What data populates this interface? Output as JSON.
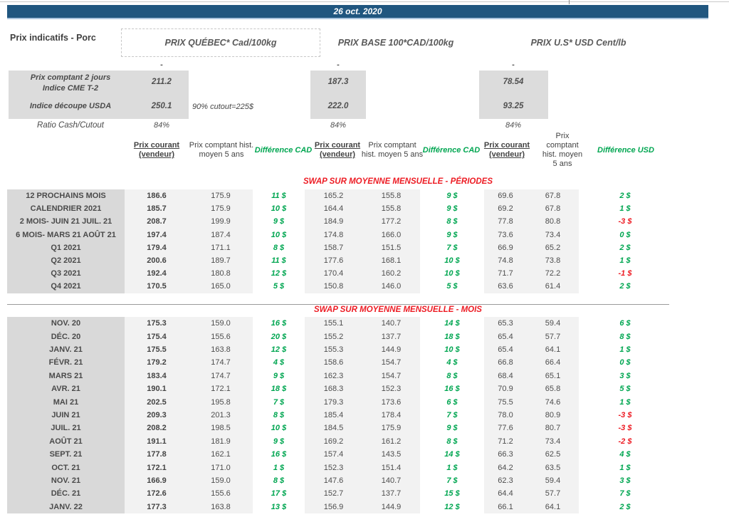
{
  "banner": {
    "date": "26 oct. 2020"
  },
  "page_title": "Prix indicatifs - Porc",
  "price_headers": {
    "quebec": "PRIX QUÉBEC* Cad/100kg",
    "base": "PRIX BASE 100*CAD/100kg",
    "us": "PRIX U.S* USD Cent/lb"
  },
  "summary": {
    "dash": "-",
    "row1": {
      "label_line1": "Prix comptant 2 jours",
      "label_line2": "Indice CME T-2",
      "quebec": "211.2",
      "base": "187.3",
      "us": "78.54"
    },
    "row2": {
      "label": "Indice découpe USDA",
      "quebec": "250.1",
      "note": "90% cutout=225$",
      "base": "222.0",
      "us": "93.25"
    },
    "row3": {
      "label": "Ratio Cash/Cutout",
      "quebec": "84%",
      "base": "84%",
      "us": "84%"
    }
  },
  "columns": {
    "prix_courant": "Prix courant (vendeur)",
    "prix_comptant": "Prix comptant hist. moyen 5 ans",
    "diff_cad": "Différence CAD",
    "diff_usd": "Différence USD"
  },
  "colors": {
    "banner_blue": "#20567F",
    "positive_green": "#00A651",
    "negative_red": "#ED1C24",
    "label_bg": "#D9D9D9",
    "value_bg": "#F2F2F2"
  },
  "sections": [
    {
      "title": "SWAP SUR MOYENNE MENSUELLE - PÉRIODES",
      "rows": [
        {
          "label": "12 PROCHAINS MOIS",
          "qc": [
            "186.6",
            "175.9",
            "11 $"
          ],
          "base": [
            "165.2",
            "155.8",
            "9 $"
          ],
          "us": [
            "69.6",
            "67.8",
            "2 $"
          ]
        },
        {
          "label": "CALENDRIER 2021",
          "qc": [
            "185.7",
            "175.9",
            "10 $"
          ],
          "base": [
            "164.4",
            "155.8",
            "9 $"
          ],
          "us": [
            "69.2",
            "67.8",
            "1 $"
          ]
        },
        {
          "label": "2 MOIS- JUIN 21 JUIL. 21",
          "qc": [
            "208.7",
            "199.9",
            "9 $"
          ],
          "base": [
            "184.9",
            "177.2",
            "8 $"
          ],
          "us": [
            "77.8",
            "80.8",
            "-3 $"
          ]
        },
        {
          "label": "6 MOIS- MARS 21 AOÛT 21",
          "qc": [
            "197.4",
            "187.4",
            "10 $"
          ],
          "base": [
            "174.8",
            "166.0",
            "9 $"
          ],
          "us": [
            "73.6",
            "73.4",
            "0 $"
          ]
        },
        {
          "label": "Q1 2021",
          "qc": [
            "179.4",
            "171.1",
            "8 $"
          ],
          "base": [
            "158.7",
            "151.5",
            "7 $"
          ],
          "us": [
            "66.9",
            "65.2",
            "2 $"
          ]
        },
        {
          "label": "Q2 2021",
          "qc": [
            "200.6",
            "189.7",
            "11 $"
          ],
          "base": [
            "177.6",
            "168.1",
            "10 $"
          ],
          "us": [
            "74.8",
            "73.8",
            "1 $"
          ]
        },
        {
          "label": "Q3 2021",
          "qc": [
            "192.4",
            "180.8",
            "12 $"
          ],
          "base": [
            "170.4",
            "160.2",
            "10 $"
          ],
          "us": [
            "71.7",
            "72.2",
            "-1 $"
          ]
        },
        {
          "label": "Q4 2021",
          "qc": [
            "170.5",
            "165.0",
            "5 $"
          ],
          "base": [
            "150.8",
            "146.0",
            "5 $"
          ],
          "us": [
            "63.6",
            "61.4",
            "2 $"
          ]
        }
      ]
    },
    {
      "title": "SWAP SUR MOYENNE MENSUELLE - MOIS",
      "rows": [
        {
          "label": "NOV. 20",
          "qc": [
            "175.3",
            "159.0",
            "16 $"
          ],
          "base": [
            "155.1",
            "140.7",
            "14 $"
          ],
          "us": [
            "65.3",
            "59.4",
            "6 $"
          ]
        },
        {
          "label": "DÉC. 20",
          "qc": [
            "175.4",
            "155.6",
            "20 $"
          ],
          "base": [
            "155.2",
            "137.7",
            "18 $"
          ],
          "us": [
            "65.4",
            "57.7",
            "8 $"
          ]
        },
        {
          "label": "JANV. 21",
          "qc": [
            "175.5",
            "163.8",
            "12 $"
          ],
          "base": [
            "155.3",
            "144.9",
            "10 $"
          ],
          "us": [
            "65.4",
            "64.1",
            "1 $"
          ]
        },
        {
          "label": "FÉVR. 21",
          "qc": [
            "179.2",
            "174.7",
            "4 $"
          ],
          "base": [
            "158.6",
            "154.7",
            "4 $"
          ],
          "us": [
            "66.8",
            "66.4",
            "0 $"
          ]
        },
        {
          "label": "MARS 21",
          "qc": [
            "183.4",
            "174.7",
            "9 $"
          ],
          "base": [
            "162.3",
            "154.7",
            "8 $"
          ],
          "us": [
            "68.4",
            "65.1",
            "3 $"
          ]
        },
        {
          "label": "AVR. 21",
          "qc": [
            "190.1",
            "172.1",
            "18 $"
          ],
          "base": [
            "168.3",
            "152.3",
            "16 $"
          ],
          "us": [
            "70.9",
            "65.8",
            "5 $"
          ]
        },
        {
          "label": "MAI 21",
          "qc": [
            "202.5",
            "195.8",
            "7 $"
          ],
          "base": [
            "179.3",
            "173.6",
            "6 $"
          ],
          "us": [
            "75.5",
            "74.6",
            "1 $"
          ]
        },
        {
          "label": "JUIN 21",
          "qc": [
            "209.3",
            "201.3",
            "8 $"
          ],
          "base": [
            "185.4",
            "178.4",
            "7 $"
          ],
          "us": [
            "78.0",
            "80.9",
            "-3 $"
          ]
        },
        {
          "label": "JUIL. 21",
          "qc": [
            "208.2",
            "198.5",
            "10 $"
          ],
          "base": [
            "184.5",
            "175.9",
            "9 $"
          ],
          "us": [
            "77.6",
            "80.7",
            "-3 $"
          ]
        },
        {
          "label": "AOÛT 21",
          "qc": [
            "191.1",
            "181.9",
            "9 $"
          ],
          "base": [
            "169.2",
            "161.2",
            "8 $"
          ],
          "us": [
            "71.2",
            "73.4",
            "-2 $"
          ]
        },
        {
          "label": "SEPT. 21",
          "qc": [
            "177.8",
            "162.1",
            "16 $"
          ],
          "base": [
            "157.4",
            "143.5",
            "14 $"
          ],
          "us": [
            "66.3",
            "62.5",
            "4 $"
          ]
        },
        {
          "label": "OCT. 21",
          "qc": [
            "172.1",
            "171.0",
            "1 $"
          ],
          "base": [
            "152.3",
            "151.4",
            "1 $"
          ],
          "us": [
            "64.2",
            "63.5",
            "1 $"
          ]
        },
        {
          "label": "NOV. 21",
          "qc": [
            "166.9",
            "159.0",
            "8 $"
          ],
          "base": [
            "147.6",
            "140.7",
            "7 $"
          ],
          "us": [
            "62.3",
            "59.4",
            "3 $"
          ]
        },
        {
          "label": "DÉC. 21",
          "qc": [
            "172.6",
            "155.6",
            "17 $"
          ],
          "base": [
            "152.7",
            "137.7",
            "15 $"
          ],
          "us": [
            "64.4",
            "57.7",
            "7 $"
          ]
        },
        {
          "label": "JANV. 22",
          "qc": [
            "177.3",
            "163.8",
            "13 $"
          ],
          "base": [
            "156.9",
            "144.9",
            "12 $"
          ],
          "us": [
            "66.1",
            "64.1",
            "2 $"
          ]
        }
      ]
    }
  ]
}
